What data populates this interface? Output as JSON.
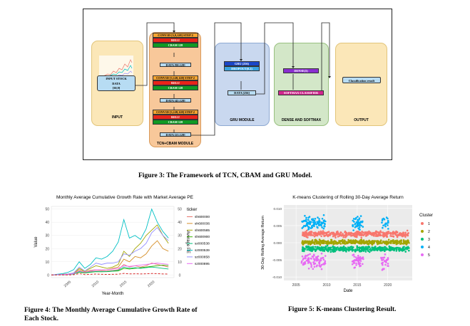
{
  "figure3": {
    "caption": "Figure 3: The Framework of TCN, CBAM and GRU Model.",
    "input": {
      "label": "INPUT",
      "box_title": "INPUT STOCK",
      "box_line2": "DATA",
      "box_line3": "[30,9]"
    },
    "tcn": {
      "label": "TCN+CBAM MODULE",
      "stages": [
        {
          "conv": "CONV1D [3,9,128] STEP 2",
          "relu": "RELU",
          "cbam": "CBAM 128",
          "data": "DATA [90,128]"
        },
        {
          "conv": "CONV1D [3,128,128] STEP 2",
          "relu": "RELU",
          "cbam": "CBAM 128",
          "data": "DATA [45,128]"
        },
        {
          "conv": "CONV1D [3,128,128] STEP 2",
          "relu": "RELU",
          "cbam": "CBAM 128",
          "data": "DATA [23,128]"
        }
      ]
    },
    "gru": {
      "label": "GRU MODULE",
      "gru": "GRU (256)",
      "dropout": "DROPOUT(0.2)",
      "data": "DATA [256]"
    },
    "dense": {
      "label": "DENSE AND SOFTMAX",
      "dense": "DENSE(5)",
      "softmax": "SOFTMAX CLASSIFIER"
    },
    "output": {
      "label": "OUTPUT",
      "result": "Classification result"
    },
    "colors": {
      "input": "#fbe7b8",
      "tcn": "#f8c89a",
      "gru": "#c9d8ef",
      "dense": "#d3e7c8",
      "output": "#fbe7b8"
    }
  },
  "figure4": {
    "caption_line1": "Figure 4: The Monthly Average Cumulative Growth Rate of",
    "caption_line2": "Each Stock.",
    "chart_data": {
      "type": "line",
      "title": "Monthly Average Cumulative Growth Rate with Market Average PE",
      "xlabel": "Year-Month",
      "ylabel": "Value",
      "ylabel_right": "Average PE",
      "x_ticks": [
        "2005",
        "2010",
        "2015",
        "2020"
      ],
      "y_ticks": [
        0,
        10,
        20,
        30,
        40,
        50
      ],
      "y_right_ticks": [
        0,
        10,
        20,
        30,
        40,
        50
      ],
      "ylim": [
        -2,
        52
      ],
      "xlim": [
        2002,
        2024
      ],
      "legend_title": "ticker",
      "legend_position": "right",
      "x": [
        2002,
        2003,
        2004,
        2005,
        2006,
        2007,
        2008,
        2009,
        2010,
        2011,
        2012,
        2013,
        2014,
        2015,
        2016,
        2017,
        2018,
        2019,
        2020,
        2021,
        2022,
        2023
      ],
      "series": [
        {
          "name": "sh600000",
          "color": "#e8766d",
          "values": [
            0,
            0.2,
            0.3,
            0.5,
            1,
            3,
            2,
            2.5,
            3,
            2.8,
            3,
            3.5,
            4,
            8,
            6,
            7,
            6,
            7,
            9,
            8,
            7,
            6
          ]
        },
        {
          "name": "sh600036",
          "color": "#d58f2a",
          "values": [
            0,
            0.2,
            0.4,
            0.6,
            1.2,
            4,
            2.5,
            3.5,
            4,
            3.5,
            4,
            5,
            6,
            12,
            10,
            14,
            13,
            16,
            22,
            26,
            20,
            18
          ]
        },
        {
          "name": "sh600585",
          "color": "#a3a500",
          "values": [
            0,
            0.3,
            0.5,
            0.8,
            1.5,
            5,
            3,
            5,
            7,
            6,
            5,
            6,
            8,
            18,
            14,
            20,
            24,
            30,
            34,
            38,
            30,
            24
          ]
        },
        {
          "name": "sh600900",
          "color": "#39b600",
          "values": [
            0,
            0.1,
            0.2,
            0.3,
            0.8,
            2,
            1.5,
            2,
            2.5,
            2.4,
            2.5,
            2.8,
            3,
            5,
            4.5,
            5,
            5.5,
            6,
            6.5,
            7,
            7.5,
            7
          ]
        },
        {
          "name": "sz000538",
          "color": "#00bf7d",
          "values": [
            0,
            0.1,
            0.2,
            0.4,
            0.8,
            2.5,
            1.8,
            2.2,
            2.6,
            2.5,
            2.6,
            3,
            3.5,
            6,
            5,
            5.5,
            5,
            5.5,
            6,
            5.5,
            5,
            4.5
          ]
        },
        {
          "name": "sz000539",
          "color": "#00bfc4",
          "values": [
            0,
            0.5,
            1,
            2,
            4,
            10,
            5,
            8,
            13,
            12,
            14,
            18,
            25,
            42,
            28,
            30,
            27,
            35,
            50,
            40,
            33,
            28
          ]
        },
        {
          "name": "sz000858",
          "color": "#9590ff",
          "values": [
            0,
            0.2,
            0.4,
            0.7,
            1.5,
            6,
            3,
            6,
            9,
            8,
            9,
            9,
            10,
            16,
            15,
            18,
            20,
            24,
            32,
            36,
            30,
            26
          ]
        },
        {
          "name": "sz000895",
          "color": "#e76bf3",
          "values": [
            0,
            0.2,
            0.3,
            0.5,
            1,
            3,
            2,
            3,
            4,
            3.8,
            4,
            4.5,
            5,
            7,
            6.5,
            7,
            7.5,
            8,
            8.5,
            9,
            8.5,
            8
          ]
        }
      ],
      "market_pe": {
        "color": "#d62728",
        "values": [
          0,
          0,
          0,
          0,
          0.2,
          1,
          0.3,
          0.5,
          0.7,
          0.5,
          0.4,
          0.5,
          0.6,
          1.2,
          0.8,
          0.9,
          0.8,
          0.9,
          1.1,
          1,
          0.8,
          0.7
        ]
      }
    }
  },
  "figure5": {
    "caption": "Figure 5: K-means Clustering Result.",
    "chart_data": {
      "type": "scatter",
      "title": "K-means Clustering of Rolling 30-Day Average Return",
      "xlabel": "Date",
      "ylabel": "30-Day Rolling Average Return",
      "x_ticks": [
        "2005",
        "2010",
        "2015",
        "2020"
      ],
      "y_ticks": [
        "-0.010",
        "-0.005",
        "0.000",
        "0.005",
        "0.010"
      ],
      "xlim": [
        2003,
        2024
      ],
      "ylim": [
        -0.011,
        0.011
      ],
      "legend_title": "Cluster",
      "legend_position": "right",
      "clusters": [
        {
          "name": "1",
          "color": "#f8766d",
          "center": 0.0025,
          "spread": 0.0008
        },
        {
          "name": "2",
          "color": "#a3a500",
          "center": 0.0002,
          "spread": 0.0006
        },
        {
          "name": "3",
          "color": "#00bf7d",
          "center": -0.0018,
          "spread": 0.0007
        },
        {
          "name": "4",
          "color": "#00b0f6",
          "center": 0.0058,
          "spread": 0.0018
        },
        {
          "name": "5",
          "color": "#e76bf3",
          "center": -0.0055,
          "spread": 0.002
        }
      ]
    }
  }
}
